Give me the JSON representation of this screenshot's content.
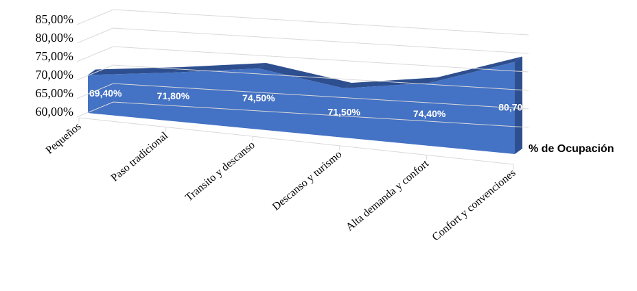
{
  "chart_data": {
    "type": "area3d",
    "categories": [
      "Pequeños",
      "Paso tradicional",
      "Transito y descanso",
      "Descanso y turismo",
      "Alta demanda y confort",
      "Confort y convenciones"
    ],
    "series": [
      {
        "name": "% de Ocupación",
        "color": "#4472c4",
        "values": [
          69.4,
          71.8,
          74.5,
          71.5,
          74.4,
          80.7
        ],
        "value_labels": [
          "69,40%",
          "71,80%",
          "74,50%",
          "71,50%",
          "74,40%",
          "80,70%"
        ]
      }
    ],
    "ylim": [
      60,
      85
    ],
    "yticks": [
      {
        "value": 60,
        "label": "60,00%"
      },
      {
        "value": 65,
        "label": "65,00%"
      },
      {
        "value": 70,
        "label": "70,00%"
      },
      {
        "value": 75,
        "label": "75,00%"
      },
      {
        "value": 80,
        "label": "80,00%"
      },
      {
        "value": 85,
        "label": "85,00%"
      }
    ],
    "grid": true,
    "legend": "right"
  }
}
